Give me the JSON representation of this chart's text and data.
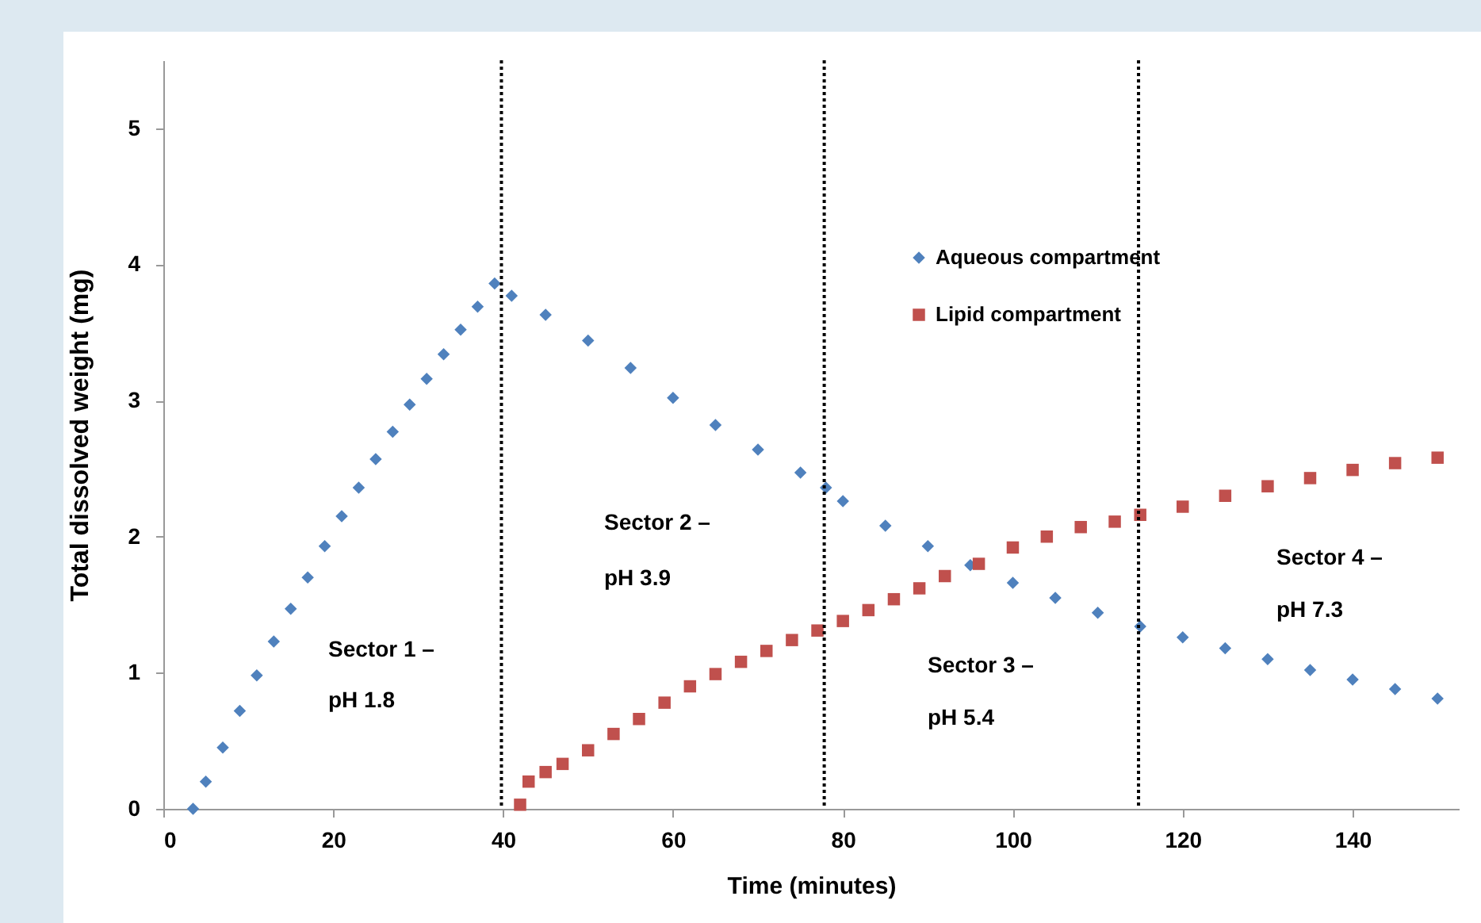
{
  "chart_data": {
    "type": "scatter",
    "xlabel": "Time (minutes)",
    "ylabel": "Total dissolved weight (mg)",
    "xlim": [
      0,
      152.5
    ],
    "ylim": [
      0,
      5.5
    ],
    "xticks": [
      0,
      20,
      40,
      60,
      80,
      100,
      120,
      140
    ],
    "yticks": [
      0,
      1,
      2,
      3,
      4,
      5
    ],
    "grid": false,
    "legend": "top",
    "line_style": "dotted",
    "series": [
      {
        "name": "Aqueous compartment",
        "color": "#4f81bd",
        "marker": "diamond",
        "x": [
          3.5,
          5,
          7,
          9,
          11,
          13,
          15,
          17,
          19,
          21,
          23,
          25,
          27,
          29,
          31,
          33,
          35,
          37,
          39,
          41,
          45,
          50,
          55,
          60,
          65,
          70,
          75,
          78,
          80,
          85,
          90,
          95,
          100,
          105,
          110,
          115,
          120,
          125,
          130,
          135,
          140,
          145,
          150
        ],
        "values": [
          0,
          0.2,
          0.45,
          0.72,
          0.98,
          1.23,
          1.47,
          1.7,
          1.93,
          2.15,
          2.36,
          2.57,
          2.77,
          2.97,
          3.16,
          3.34,
          3.52,
          3.69,
          3.86,
          3.77,
          3.63,
          3.44,
          3.24,
          3.02,
          2.82,
          2.64,
          2.47,
          2.36,
          2.26,
          2.08,
          1.93,
          1.79,
          1.66,
          1.55,
          1.44,
          1.34,
          1.26,
          1.18,
          1.1,
          1.02,
          0.95,
          0.88,
          0.81
        ]
      },
      {
        "name": "Lipid compartment",
        "color": "#c0504d",
        "marker": "square",
        "x": [
          42,
          43,
          45,
          47,
          50,
          53,
          56,
          59,
          62,
          65,
          68,
          71,
          74,
          77,
          80,
          83,
          86,
          89,
          92,
          96,
          100,
          104,
          108,
          112,
          115,
          120,
          125,
          130,
          135,
          140,
          145,
          150
        ],
        "values": [
          0.03,
          0.2,
          0.27,
          0.33,
          0.43,
          0.55,
          0.66,
          0.78,
          0.9,
          0.99,
          1.08,
          1.16,
          1.24,
          1.31,
          1.38,
          1.46,
          1.54,
          1.62,
          1.71,
          1.8,
          1.92,
          2,
          2.07,
          2.11,
          2.16,
          2.22,
          2.3,
          2.37,
          2.43,
          2.49,
          2.54,
          2.58
        ]
      }
    ],
    "ref_lines": [
      {
        "axis": "x",
        "value": 39.8
      },
      {
        "axis": "x",
        "value": 77.8
      },
      {
        "axis": "x",
        "value": 114.8
      }
    ],
    "annotations": [
      "Sector 1 –",
      "pH 1.8",
      "Sector 2 –",
      "pH 3.9",
      "Sector 3 –",
      "pH 5.4",
      "Sector 4 –",
      "pH 7.3"
    ]
  }
}
